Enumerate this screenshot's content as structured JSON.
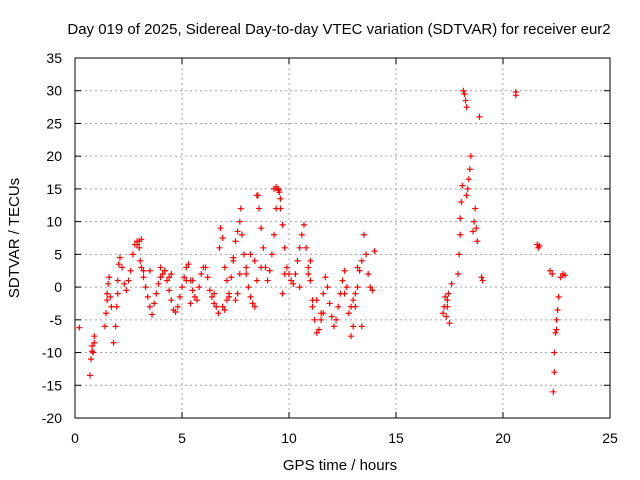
{
  "chart_data": {
    "type": "scatter",
    "title": "Day 019 of 2025, Sidereal Day-to-day VTEC variation (SDTVAR) for receiver eur2",
    "xlabel": "GPS time / hours",
    "ylabel": "SDTVAR / TECUs",
    "xlim": [
      0,
      25
    ],
    "ylim": [
      -20,
      35
    ],
    "xticks": [
      0,
      5,
      10,
      15,
      20,
      25
    ],
    "yticks": [
      -20,
      -15,
      -10,
      -5,
      0,
      5,
      10,
      15,
      20,
      25,
      30,
      35
    ],
    "grid": true,
    "marker": "+",
    "color": "#ff0000",
    "series": [
      {
        "name": "SDTVAR",
        "x": [
          0.2,
          0.7,
          0.75,
          0.8,
          0.8,
          0.85,
          0.9,
          0.9,
          1.4,
          1.45,
          1.5,
          1.5,
          1.55,
          1.6,
          1.65,
          1.7,
          1.8,
          1.9,
          1.95,
          2.0,
          2.0,
          2.05,
          2.1,
          2.2,
          2.3,
          2.4,
          2.5,
          2.6,
          2.7,
          2.8,
          2.9,
          3.0,
          3.05,
          3.1,
          3.2,
          3.3,
          3.4,
          3.5,
          3.6,
          3.7,
          3.8,
          3.9,
          4.0,
          4.1,
          4.2,
          4.3,
          4.4,
          4.5,
          4.6,
          4.7,
          4.8,
          4.9,
          5.0,
          5.1,
          5.2,
          5.3,
          5.4,
          5.5,
          5.6,
          5.7,
          5.8,
          5.9,
          6.0,
          6.1,
          6.2,
          6.3,
          6.4,
          6.5,
          6.6,
          6.7,
          6.75,
          6.8,
          6.9,
          7.0,
          7.1,
          7.2,
          7.3,
          7.4,
          7.5,
          7.6,
          7.7,
          7.75,
          7.8,
          7.9,
          8.0,
          8.1,
          8.2,
          8.3,
          8.4,
          8.5,
          8.55,
          8.6,
          8.7,
          8.8,
          8.9,
          9.0,
          9.1,
          9.2,
          9.3,
          9.4,
          9.5,
          9.55,
          9.6,
          9.7,
          9.8,
          9.9,
          10.0,
          10.1,
          10.2,
          10.3,
          10.4,
          10.5,
          10.6,
          10.7,
          10.8,
          10.9,
          11.0,
          11.1,
          11.2,
          11.3,
          11.4,
          11.5,
          11.6,
          11.7,
          11.8,
          11.9,
          12.0,
          12.1,
          12.2,
          12.3,
          12.4,
          12.5,
          12.6,
          12.7,
          12.8,
          12.9,
          13.0,
          13.1,
          13.2,
          13.3,
          13.4,
          13.5,
          13.6,
          13.7,
          13.8,
          13.9,
          14.0,
          2.9,
          3.0,
          3.1,
          3.2,
          4.0,
          4.2,
          4.4,
          5.2,
          5.4,
          6.9,
          7.0,
          7.1,
          7.2,
          7.5,
          7.6,
          7.7,
          8.0,
          8.2,
          8.4,
          8.5,
          9.3,
          9.4,
          9.5,
          9.6,
          9.7,
          10.9,
          11.0,
          11.1,
          11.5,
          11.6,
          12.9,
          13.0,
          13.1,
          13.2,
          3.5,
          4.5,
          5.5,
          6.5,
          7.4,
          8.7,
          9.8,
          10.5,
          11.3,
          12.6,
          13.4,
          17.2,
          17.25,
          17.3,
          17.35,
          17.4,
          17.4,
          17.45,
          17.5,
          17.6,
          17.9,
          17.95,
          18.0,
          18.0,
          18.05,
          18.1,
          18.15,
          18.2,
          18.25,
          18.3,
          18.3,
          18.35,
          18.4,
          18.45,
          18.5,
          18.6,
          18.65,
          18.7,
          18.75,
          18.8,
          18.9,
          19.0,
          19.05,
          20.6,
          20.6,
          21.6,
          21.65,
          21.7,
          22.2,
          22.3,
          22.35,
          22.4,
          22.4,
          22.45,
          22.5,
          22.5,
          22.55,
          22.6,
          22.7,
          22.8,
          22.9
        ],
        "y": [
          -6.2,
          -13.5,
          -11,
          -9.8,
          -9,
          -10,
          -8.5,
          -7.5,
          -6,
          -4,
          -2,
          -1,
          0.5,
          1.5,
          -1.5,
          -3,
          -8.5,
          -6,
          -3,
          -1,
          1,
          3.5,
          4.5,
          3,
          0.5,
          -0.5,
          1,
          2.5,
          5,
          6.5,
          7,
          6,
          4,
          3,
          1.5,
          0,
          -1.5,
          -3,
          -4.2,
          -2.5,
          -1,
          0.5,
          1.5,
          2,
          2.5,
          1,
          -0.5,
          -2,
          -3.5,
          -3.8,
          -3,
          -1.5,
          0,
          1.5,
          3,
          3.5,
          1,
          -0.5,
          -1.5,
          -2,
          0,
          2,
          3,
          3,
          1.5,
          -0.5,
          -1.5,
          -2.5,
          -3,
          -4,
          6,
          9,
          7.5,
          3,
          1,
          -1,
          1.5,
          4.5,
          7,
          8.5,
          10,
          12,
          8,
          5,
          2,
          0,
          -1.5,
          -2.5,
          -3,
          1,
          14,
          12,
          9,
          6,
          3,
          1,
          2.5,
          5,
          8,
          12,
          15,
          14.5,
          12,
          9.5,
          6,
          3,
          2,
          1,
          0.5,
          2,
          4,
          6,
          8,
          9.5,
          6,
          3,
          1,
          -2,
          -5,
          -7,
          -6.5,
          -4,
          -1,
          1.5,
          0,
          -2.5,
          -4.5,
          -6,
          -5,
          -3,
          -1,
          1,
          2.5,
          0,
          -4,
          -7.5,
          -6,
          -3,
          0,
          2.5,
          4,
          8,
          5,
          2,
          0,
          -0.5,
          5.5,
          6.5,
          7,
          7.3,
          2.5,
          3,
          2.5,
          1.5,
          1,
          -2.5,
          -3,
          -3.5,
          -2,
          -1.5,
          -2,
          -1,
          2,
          3,
          5,
          4,
          14,
          15,
          15.3,
          14.8,
          13.5,
          -1,
          2,
          4,
          -3,
          -5,
          -4,
          -3,
          -2,
          -1,
          3,
          2.5,
          2,
          1,
          -1,
          4,
          3,
          2,
          0,
          -2,
          -1,
          -6,
          -4,
          -3,
          -1.5,
          -4.5,
          -3,
          -2,
          -1,
          -5.5,
          0.5,
          2,
          5,
          8,
          10.5,
          13,
          15.5,
          30,
          29.5,
          28.5,
          27.5,
          14,
          15,
          16.5,
          18,
          20,
          8.5,
          10,
          12,
          9,
          7,
          26,
          1.5,
          1,
          29.8,
          29.3,
          6.5,
          6,
          6.3,
          2.5,
          2,
          -16,
          -13,
          -10,
          -7,
          -5,
          -6.5,
          -3.5,
          -1.5,
          1.5,
          2,
          1.8
        ]
      }
    ]
  }
}
